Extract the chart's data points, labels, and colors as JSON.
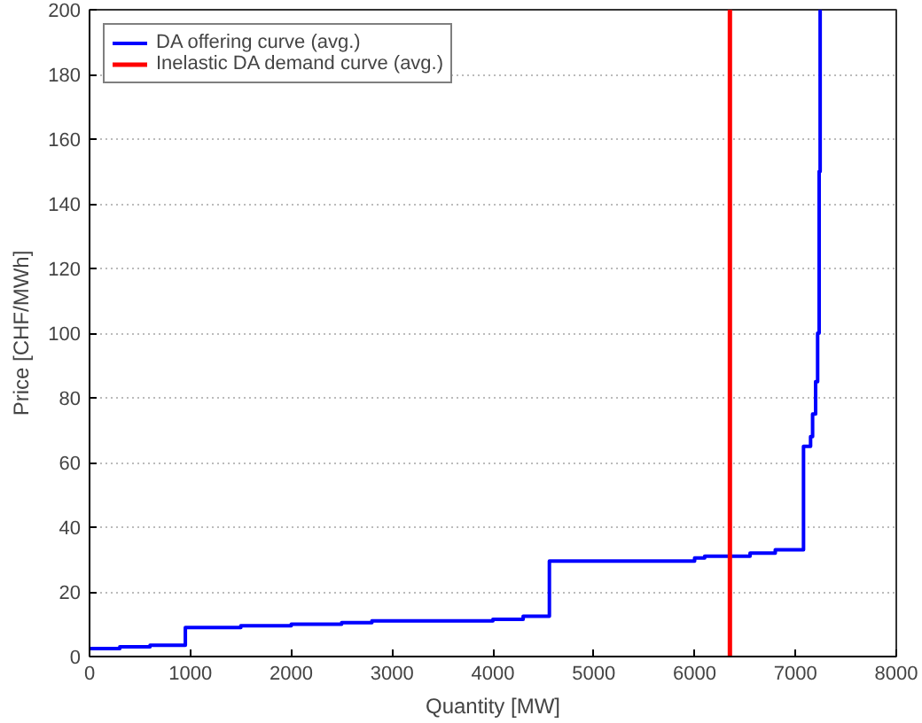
{
  "chart_data": {
    "type": "line",
    "xlabel": "Quantity [MW]",
    "ylabel": "Price [CHF/MWh]",
    "xlim": [
      0,
      8000
    ],
    "xticks": [
      0,
      1000,
      2000,
      3000,
      4000,
      5000,
      6000,
      7000,
      8000
    ],
    "ylim": [
      0,
      200
    ],
    "yticks": [
      0,
      20,
      40,
      60,
      80,
      100,
      120,
      140,
      160,
      180,
      200
    ],
    "grid": "y",
    "legend": "top left",
    "series": [
      {
        "name": "DA offering curve (avg.)",
        "type": "step",
        "color": "#0000ff",
        "x": [
          0,
          300,
          600,
          950,
          1500,
          2000,
          2500,
          2800,
          3500,
          4000,
          4300,
          4560,
          6000,
          6100,
          6550,
          6800,
          7080,
          7150,
          7170,
          7200,
          7220,
          7235,
          7245
        ],
        "values": [
          2.5,
          3,
          3.5,
          9,
          9.5,
          10,
          10.5,
          11,
          11,
          11.5,
          12.5,
          29.5,
          30.5,
          31,
          32,
          33,
          65,
          68,
          75,
          85,
          100,
          150,
          200
        ]
      },
      {
        "name": "Inelastic DA demand curve (avg.)",
        "color": "#ff0000",
        "x": [
          6350,
          6350
        ],
        "values": [
          0,
          200
        ]
      }
    ]
  }
}
